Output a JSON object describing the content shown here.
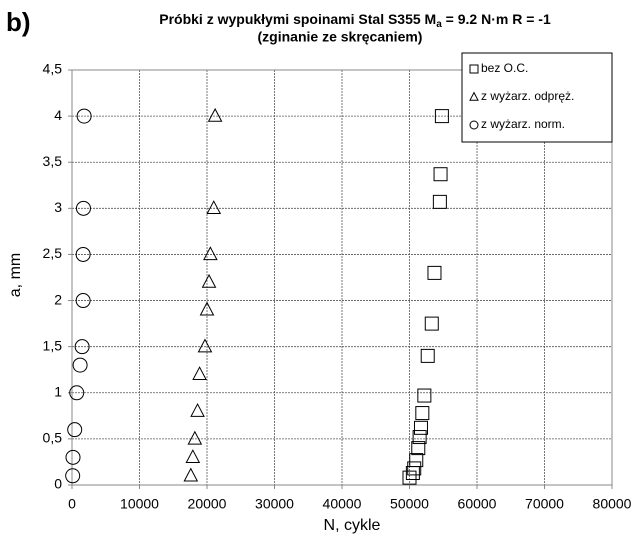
{
  "chart_data": {
    "type": "scatter",
    "panel_label": "b)",
    "title": [
      "Próbki z wypukłymi spoinami Stal S355  M",
      "a",
      " = 9.2 N·m R = -1"
    ],
    "subtitle": "(zginanie ze skręcaniem)",
    "xlabel": "N, cykle",
    "ylabel": "a, mm",
    "xlim": [
      0,
      80000
    ],
    "xticks": [
      0,
      10000,
      20000,
      30000,
      40000,
      50000,
      60000,
      70000,
      80000
    ],
    "ylim": [
      0,
      4.5
    ],
    "yticks": [
      0,
      {
        "value": 0.5,
        "label": "0,5"
      },
      1,
      {
        "value": 1.5,
        "label": "1,5"
      },
      2,
      {
        "value": 2.5,
        "label": "2,5"
      },
      3,
      {
        "value": 3.5,
        "label": "3,5"
      },
      4,
      {
        "value": 4.5,
        "label": "4,5"
      }
    ],
    "grid": true,
    "legend": "upper right",
    "series": [
      {
        "name": "bez O.C.",
        "marker": "square",
        "color": "#000000",
        "x": [
          54800,
          54600,
          54500,
          53700,
          53300,
          52700,
          52200,
          51900,
          51700,
          51500,
          51300,
          51000,
          50700,
          50500,
          50000
        ],
        "values": [
          4,
          3.37,
          3.07,
          2.3,
          1.75,
          1.4,
          0.97,
          0.78,
          0.62,
          0.52,
          0.4,
          0.27,
          0.18,
          0.13,
          0.08
        ]
      },
      {
        "name": "z wyżarz. odpręż.",
        "marker": "triangle",
        "color": "#000000",
        "x": [
          21200,
          21000,
          20500,
          20300,
          20000,
          19700,
          18900,
          18600,
          18200,
          17900,
          17600
        ],
        "values": [
          4,
          3,
          2.5,
          2.2,
          1.9,
          1.5,
          1.2,
          0.8,
          0.5,
          0.3,
          0.1
        ]
      },
      {
        "name": "z wyżarz. norm.",
        "marker": "circle",
        "color": "#000000",
        "x": [
          1800,
          1700,
          1650,
          1650,
          1500,
          1200,
          700,
          400,
          150,
          100
        ],
        "values": [
          4,
          3,
          2.5,
          2,
          1.5,
          1.3,
          1,
          0.6,
          0.3,
          0.1
        ]
      }
    ]
  }
}
